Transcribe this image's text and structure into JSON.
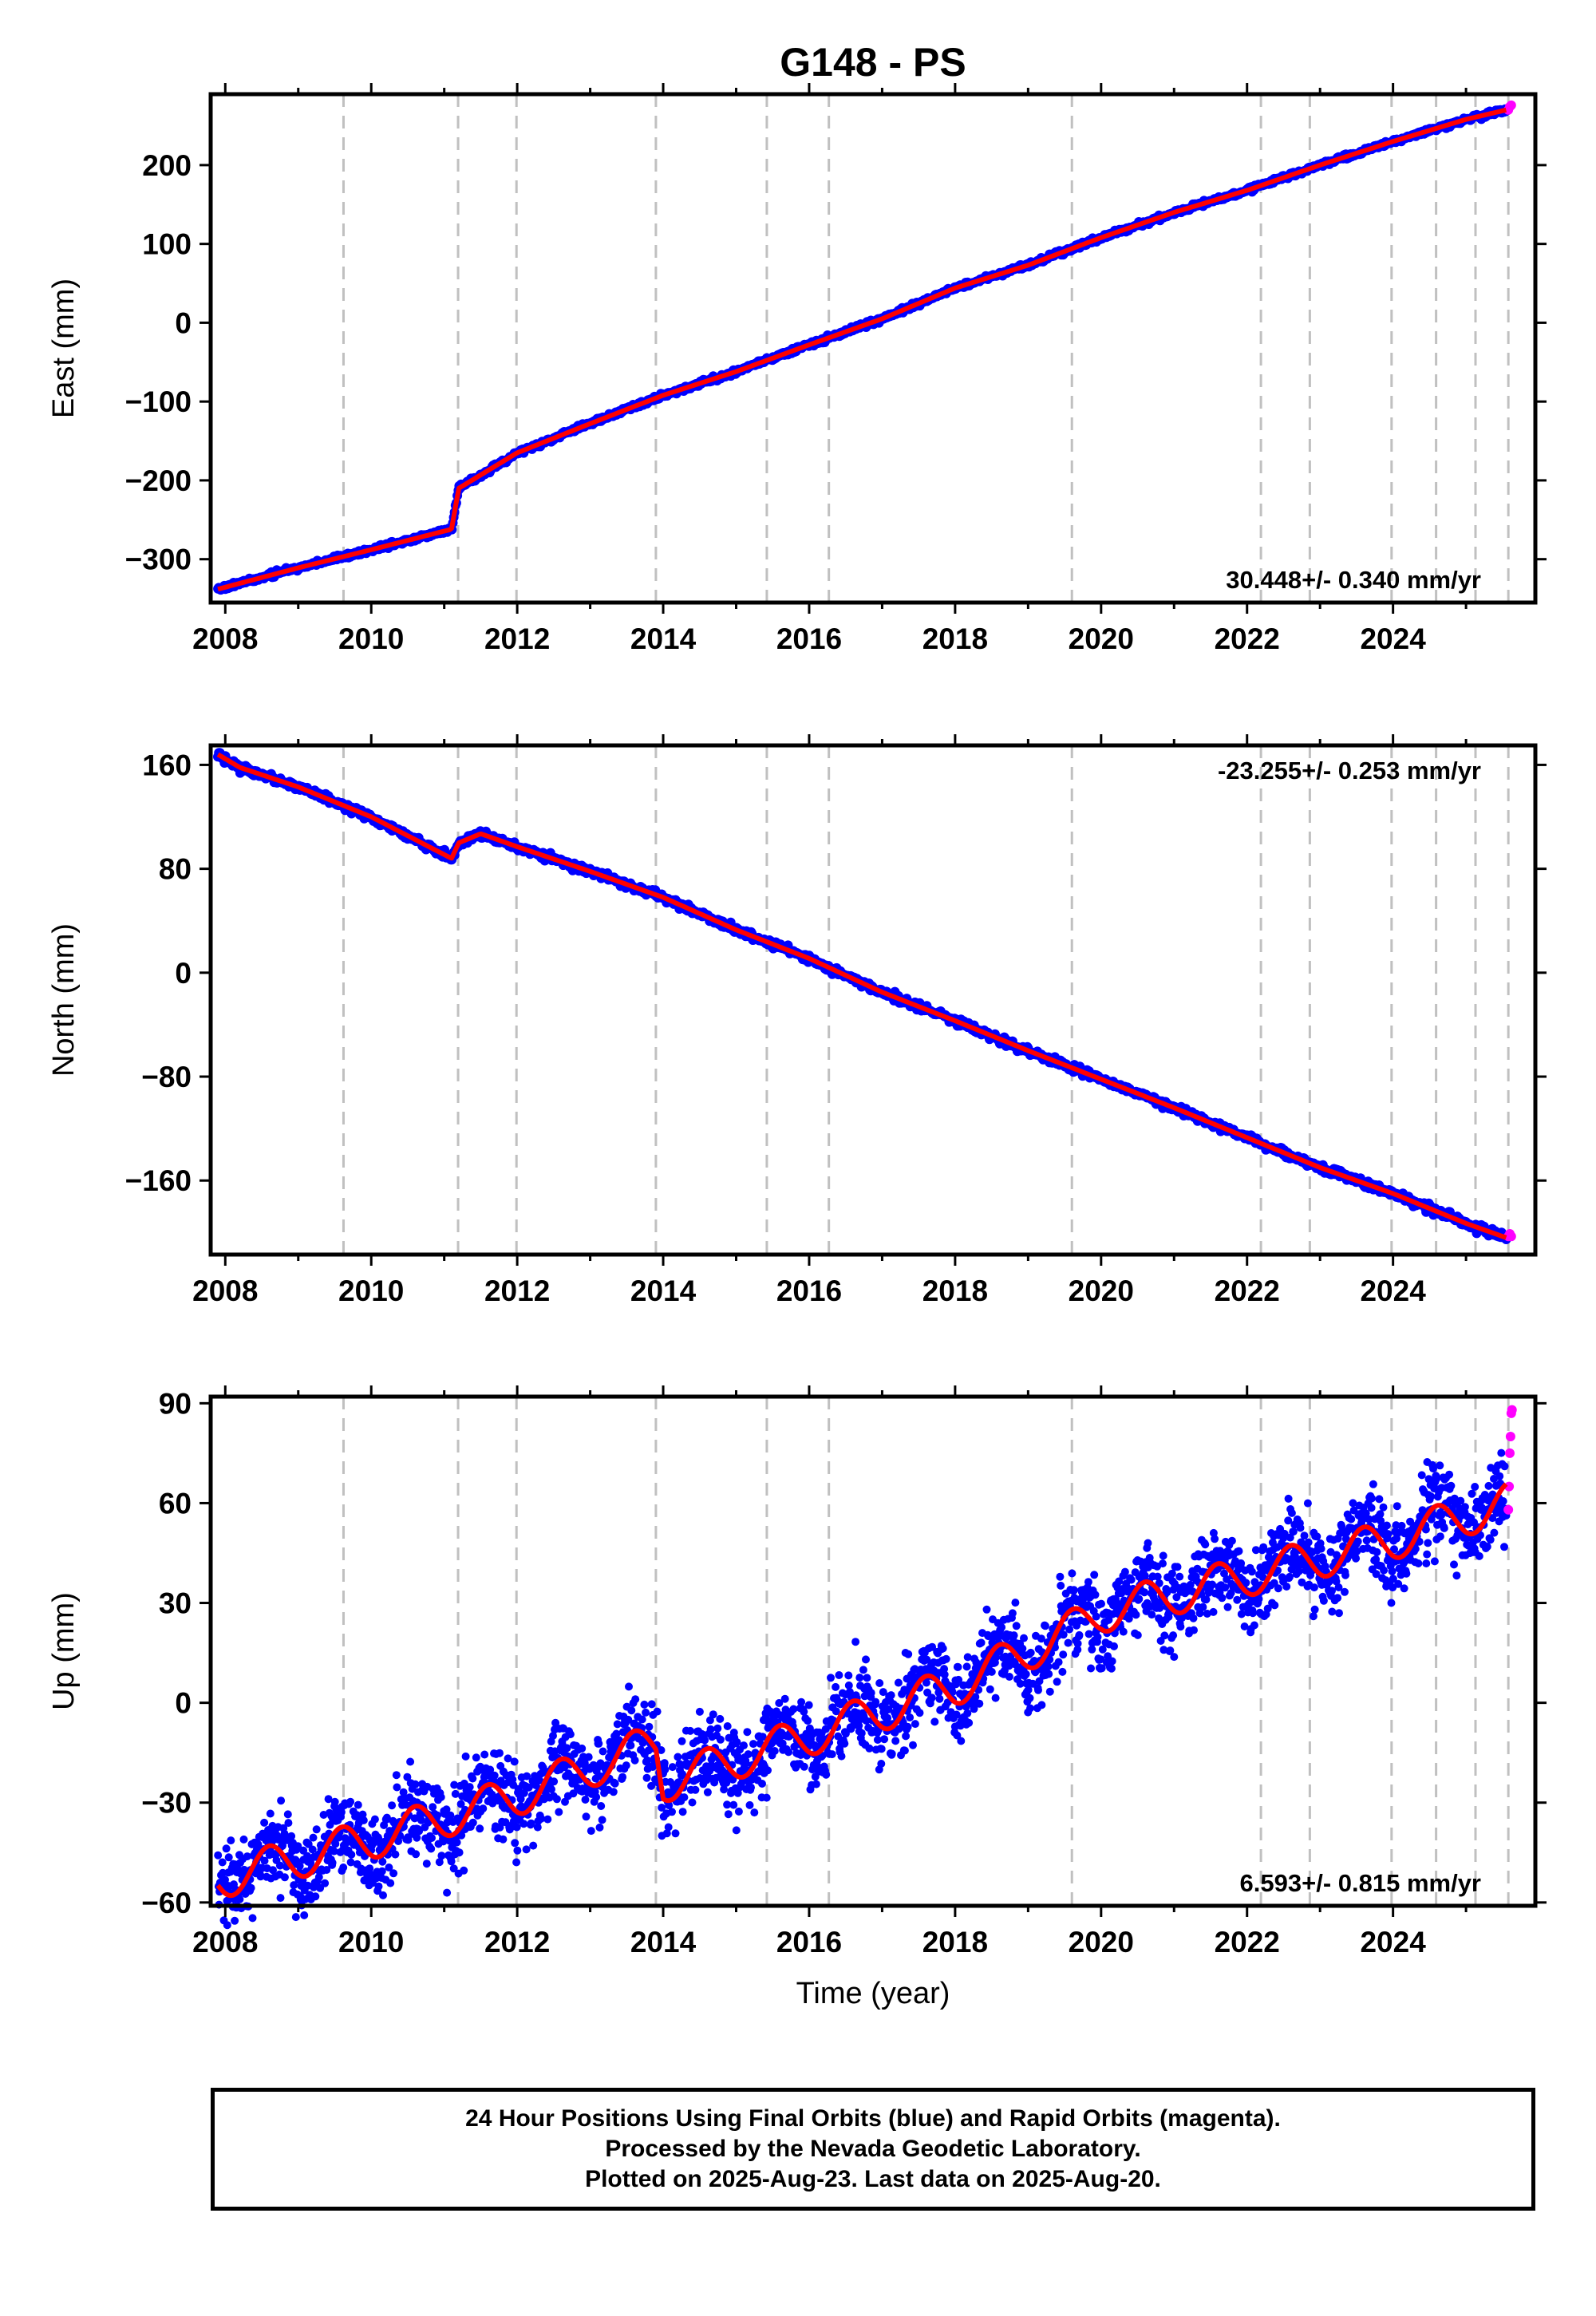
{
  "title": "G148 - PS",
  "chart_data": [
    {
      "type": "scatter",
      "ylabel": "East (mm)",
      "xlabel": "",
      "xlim": [
        2007.8,
        2025.95
      ],
      "ylim": [
        -355,
        290
      ],
      "x_ticks": [
        2008,
        2010,
        2012,
        2014,
        2016,
        2018,
        2020,
        2022,
        2024
      ],
      "y_ticks": [
        -300,
        -200,
        -100,
        0,
        100,
        200
      ],
      "velocity_label": "30.448+/- 0.340 mm/yr",
      "velocity_position": "bottom-right",
      "event_lines": [
        2009.62,
        2011.19,
        2011.99,
        2013.9,
        2015.42,
        2016.27,
        2019.6,
        2022.19,
        2022.86,
        2023.98,
        2024.59,
        2025.13,
        2025.58
      ],
      "series": [
        {
          "name": "Final Orbits",
          "style": "dots",
          "x": [
            2007.9,
            2009.0,
            2010.0,
            2011.1,
            2011.2,
            2012.0,
            2013.0,
            2014.0,
            2015.0,
            2016.0,
            2017.0,
            2018.0,
            2019.0,
            2020.0,
            2021.0,
            2022.0,
            2023.0,
            2024.0,
            2025.0,
            2025.55
          ],
          "y": [
            -338,
            -311,
            -288,
            -262,
            -210,
            -165,
            -128,
            -92,
            -62,
            -28,
            5,
            44,
            73,
            108,
            140,
            168,
            200,
            230,
            258,
            270
          ]
        },
        {
          "name": "Rapid Orbits",
          "style": "dots",
          "x": [
            2025.58,
            2025.6,
            2025.62
          ],
          "y": [
            270,
            274,
            276
          ]
        },
        {
          "name": "Model",
          "style": "line",
          "x": [
            2007.9,
            2009.0,
            2010.0,
            2011.1,
            2011.2,
            2012.0,
            2013.0,
            2014.0,
            2015.0,
            2016.0,
            2017.0,
            2018.0,
            2019.0,
            2020.0,
            2021.0,
            2022.0,
            2023.0,
            2024.0,
            2025.0,
            2025.55
          ],
          "y": [
            -338,
            -311,
            -288,
            -262,
            -210,
            -165,
            -128,
            -92,
            -62,
            -28,
            5,
            44,
            73,
            108,
            140,
            168,
            200,
            230,
            258,
            270
          ]
        }
      ]
    },
    {
      "type": "scatter",
      "ylabel": "North (mm)",
      "xlabel": "",
      "xlim": [
        2007.8,
        2025.95
      ],
      "ylim": [
        -217,
        175
      ],
      "x_ticks": [
        2008,
        2010,
        2012,
        2014,
        2016,
        2018,
        2020,
        2022,
        2024
      ],
      "y_ticks": [
        -160,
        -80,
        0,
        80,
        160
      ],
      "velocity_label": "-23.255+/- 0.253 mm/yr",
      "velocity_position": "top-right",
      "event_lines": [
        2009.62,
        2011.19,
        2011.99,
        2013.9,
        2015.42,
        2016.27,
        2019.6,
        2022.19,
        2022.86,
        2023.98,
        2024.59,
        2025.13,
        2025.58
      ],
      "series": [
        {
          "name": "Final Orbits",
          "style": "dots",
          "x": [
            2007.9,
            2008.2,
            2009.0,
            2010.0,
            2011.1,
            2011.2,
            2011.5,
            2012.0,
            2013.0,
            2014.0,
            2015.0,
            2016.0,
            2017.0,
            2018.0,
            2019.0,
            2020.0,
            2021.0,
            2022.0,
            2023.0,
            2024.0,
            2025.0,
            2025.55
          ],
          "y": [
            168,
            158,
            143,
            120,
            88,
            100,
            107,
            97,
            78,
            58,
            33,
            11,
            -15,
            -37,
            -60,
            -82,
            -104,
            -127,
            -150,
            -170,
            -193,
            -204
          ]
        },
        {
          "name": "Rapid Orbits",
          "style": "dots",
          "x": [
            2025.58,
            2025.6,
            2025.62
          ],
          "y": [
            -203,
            -201,
            -203
          ]
        },
        {
          "name": "Model",
          "style": "line",
          "x": [
            2007.9,
            2008.2,
            2009.0,
            2010.0,
            2011.1,
            2011.2,
            2011.5,
            2012.0,
            2013.0,
            2014.0,
            2015.0,
            2016.0,
            2017.0,
            2018.0,
            2019.0,
            2020.0,
            2021.0,
            2022.0,
            2023.0,
            2024.0,
            2025.0,
            2025.55
          ],
          "y": [
            168,
            158,
            143,
            120,
            88,
            100,
            107,
            97,
            78,
            58,
            33,
            11,
            -15,
            -37,
            -60,
            -82,
            -104,
            -127,
            -150,
            -170,
            -193,
            -204
          ]
        }
      ]
    },
    {
      "type": "scatter",
      "ylabel": "Up (mm)",
      "xlabel": "Time (year)",
      "xlim": [
        2007.8,
        2025.95
      ],
      "ylim": [
        -61,
        92
      ],
      "x_ticks": [
        2008,
        2010,
        2012,
        2014,
        2016,
        2018,
        2020,
        2022,
        2024
      ],
      "y_ticks": [
        -60,
        -30,
        0,
        30,
        60,
        90
      ],
      "velocity_label": "6.593+/- 0.815 mm/yr",
      "velocity_position": "bottom-right",
      "event_lines": [
        2009.62,
        2011.19,
        2011.99,
        2013.9,
        2015.42,
        2016.27,
        2019.6,
        2022.19,
        2022.86,
        2023.98,
        2024.59,
        2025.13,
        2025.58
      ],
      "seasonal_amplitude_mm": 6,
      "series": [
        {
          "name": "Final Orbits",
          "style": "dots",
          "scatter_mm": 9,
          "x": [
            2007.9,
            2010.0,
            2012.0,
            2013.9,
            2014.0,
            2016.0,
            2018.0,
            2019.6,
            2020.0,
            2022.0,
            2024.0,
            2025.55
          ],
          "y": [
            -53,
            -41,
            -28,
            -12,
            -24,
            -10,
            5,
            22,
            27,
            38,
            49,
            60
          ]
        },
        {
          "name": "Rapid Orbits",
          "style": "dots",
          "x": [
            2025.58,
            2025.59,
            2025.6,
            2025.61,
            2025.62,
            2025.63
          ],
          "y": [
            58,
            65,
            75,
            80,
            87,
            88
          ]
        },
        {
          "name": "Model",
          "style": "line",
          "x": [
            2007.9,
            2010.0,
            2012.0,
            2013.9,
            2014.0,
            2016.0,
            2018.0,
            2019.6,
            2020.0,
            2022.0,
            2024.0,
            2025.55
          ],
          "y": [
            -53,
            -41,
            -28,
            -12,
            -24,
            -10,
            5,
            22,
            27,
            38,
            49,
            60
          ]
        }
      ]
    }
  ],
  "colors": {
    "final_orbits": "#0000ff",
    "rapid_orbits": "#ff00ff",
    "model": "#ff0000",
    "event_lines": "#c0c0c0"
  },
  "footer": {
    "line1": "24 Hour Positions Using Final Orbits (blue) and Rapid Orbits (magenta).",
    "line2": "Processed by the Nevada Geodetic Laboratory.",
    "line3": "Plotted on 2025-Aug-23. Last data on 2025-Aug-20."
  }
}
